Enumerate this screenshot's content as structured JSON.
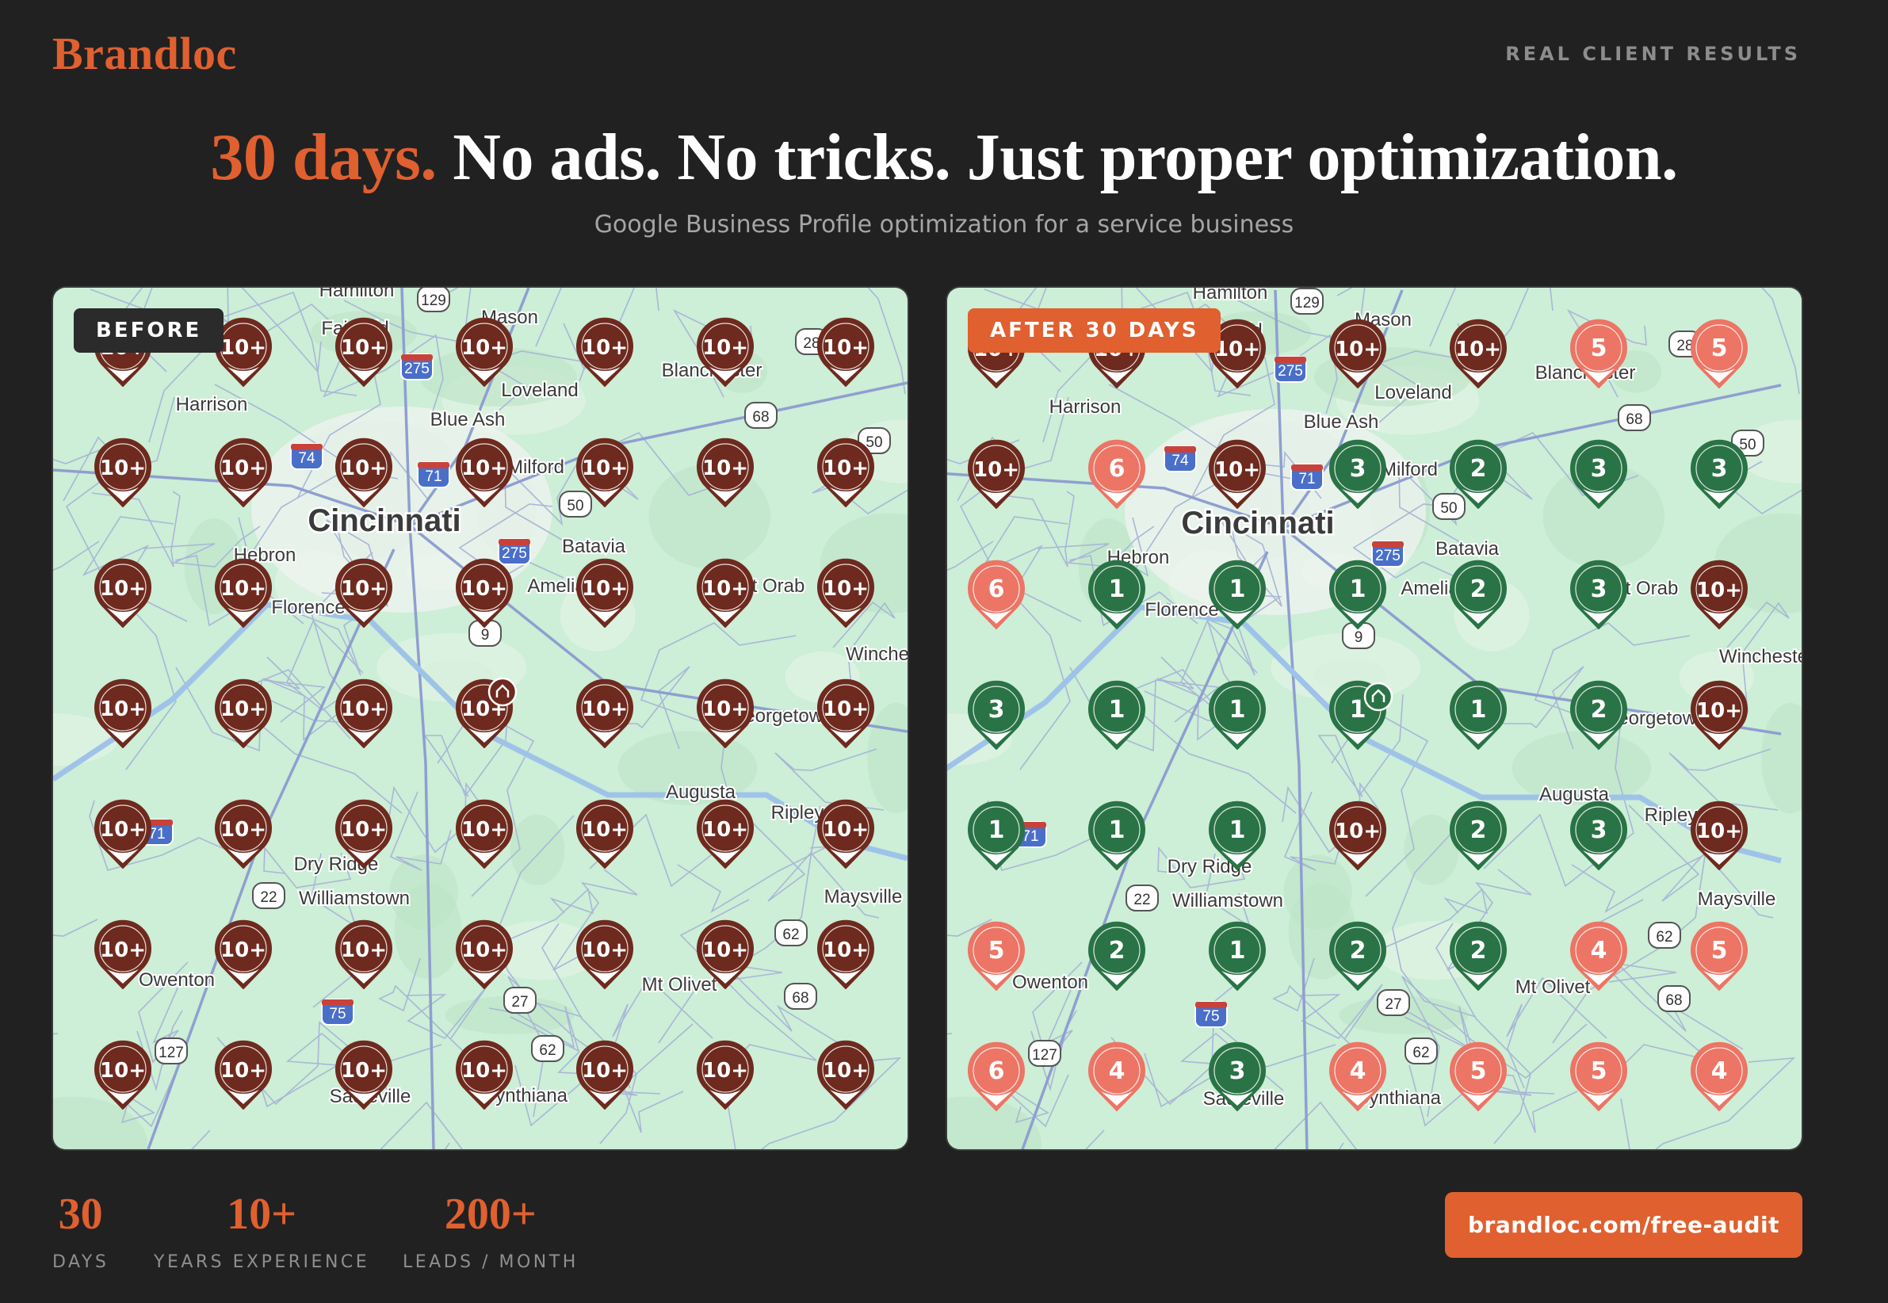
{
  "header": {
    "logo": "Brandloc",
    "tagline": "REAL CLIENT RESULTS"
  },
  "hero": {
    "headline_accent": "30 days.",
    "headline_rest": "No ads. No tricks. Just proper optimization.",
    "subtitle": "Google Business Profile optimization for a service business"
  },
  "maps": {
    "before": {
      "badge": "BEFORE",
      "grid": [
        [
          "10+",
          "10+",
          "10+",
          "10+",
          "10+",
          "10+",
          "10+"
        ],
        [
          "10+",
          "10+",
          "10+",
          "10+",
          "10+",
          "10+",
          "10+"
        ],
        [
          "10+",
          "10+",
          "10+",
          "10+",
          "10+",
          "10+",
          "10+"
        ],
        [
          "10+",
          "10+",
          "10+",
          "10+",
          "10+",
          "10+",
          "10+"
        ],
        [
          "10+",
          "10+",
          "10+",
          "10+",
          "10+",
          "10+",
          "10+"
        ],
        [
          "10+",
          "10+",
          "10+",
          "10+",
          "10+",
          "10+",
          "10+"
        ],
        [
          "10+",
          "10+",
          "10+",
          "10+",
          "10+",
          "10+",
          "10+"
        ]
      ]
    },
    "after": {
      "badge": "AFTER 30 DAYS",
      "grid": [
        [
          "10+",
          "10+",
          "10+",
          "10+",
          "10+",
          "5",
          "5"
        ],
        [
          "10+",
          "6",
          "10+",
          "3",
          "2",
          "3",
          "3"
        ],
        [
          "6",
          "1",
          "1",
          "1",
          "2",
          "3",
          "10+"
        ],
        [
          "3",
          "1",
          "1",
          "1",
          "1",
          "2",
          "10+"
        ],
        [
          "1",
          "1",
          "1",
          "10+",
          "2",
          "3",
          "10+"
        ],
        [
          "5",
          "2",
          "1",
          "2",
          "2",
          "4",
          "5"
        ],
        [
          "6",
          "4",
          "3",
          "4",
          "5",
          "5",
          "4"
        ]
      ]
    }
  },
  "map_labels": [
    "Hamilton",
    "Mason",
    "Fairfield",
    "Harrison",
    "Loveland",
    "Blue Ash",
    "Blanchester",
    "Milford",
    "Cincinnati",
    "Hebron",
    "Batavia",
    "Florence",
    "Amelia",
    "Mt Orab",
    "Winchester",
    "Georgetown",
    "Augusta",
    "Ripley",
    "Dry Ridge",
    "Williamstown",
    "Maysville",
    "Owenton",
    "Mt Olivet",
    "Sadieville",
    "Cynthiana"
  ],
  "road_shields": [
    "129",
    "275",
    "74",
    "71",
    "275",
    "50",
    "68",
    "9",
    "71",
    "22",
    "75",
    "27",
    "62",
    "68",
    "62",
    "127",
    "28",
    "50"
  ],
  "pin_colors": {
    "top_3": "#2a7346",
    "rank_4_to_6": "#ec7565",
    "rank_10_plus": "#6e2a1e"
  },
  "stats": [
    {
      "value": "30",
      "label": "DAYS"
    },
    {
      "value": "10+",
      "label": "YEARS EXPERIENCE"
    },
    {
      "value": "200+",
      "label": "LEADS / MONTH"
    }
  ],
  "cta": {
    "label": "brandloc.com/free-audit"
  },
  "colors": {
    "accent": "#e0602f",
    "background": "#212121",
    "map_land": "#cdeed7"
  }
}
